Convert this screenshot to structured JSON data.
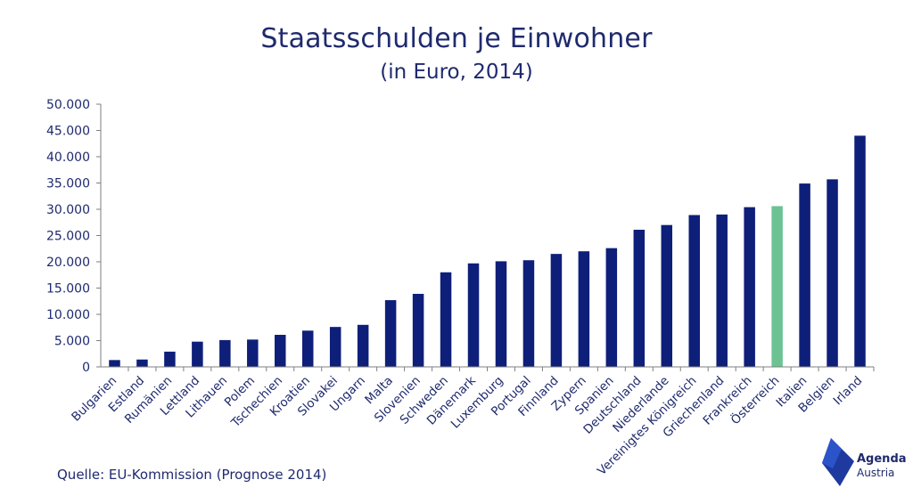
{
  "chart_data": {
    "type": "bar",
    "title": "Staatsschulden je Einwohner",
    "subtitle": "(in Euro, 2014)",
    "xlabel": "",
    "ylabel": "",
    "ylim": [
      0,
      50000
    ],
    "yticks": [
      "0",
      "5.000",
      "10.000",
      "15.000",
      "20.000",
      "25.000",
      "30.000",
      "35.000",
      "40.000",
      "45.000",
      "50.000"
    ],
    "grid": false,
    "legend": "none",
    "categories": [
      "Bulgarien",
      "Estland",
      "Rumänien",
      "Lettland",
      "Lithauen",
      "Polem",
      "Tschechien",
      "Kroatien",
      "Slovakei",
      "Ungarn",
      "Malta",
      "Slovenien",
      "Schweden",
      "Dänemark",
      "Luxemburg",
      "Portugal",
      "Finnland",
      "Zypern",
      "Spanien",
      "Deutschland",
      "Niederlande",
      "Vereinigtes Königreich",
      "Griechenland",
      "Frankreich",
      "Österreich",
      "Italien",
      "Belgien",
      "Irland"
    ],
    "values": [
      1300,
      1400,
      2900,
      4800,
      5100,
      5200,
      6100,
      6900,
      7600,
      8000,
      12700,
      13900,
      18000,
      19700,
      20100,
      20300,
      21500,
      22000,
      22600,
      26100,
      27000,
      28900,
      29000,
      30400,
      30600,
      34900,
      35700,
      44000
    ],
    "highlight_index": 24,
    "colors": {
      "bar": "#0e1f7a",
      "highlight": "#6cc293",
      "axis": "#7f7f7f"
    }
  },
  "source": "Quelle: EU-Kommission (Prognose 2014)",
  "logo": {
    "word1": "Agenda",
    "word2": "Austria",
    "color": "#1f2a6e"
  }
}
